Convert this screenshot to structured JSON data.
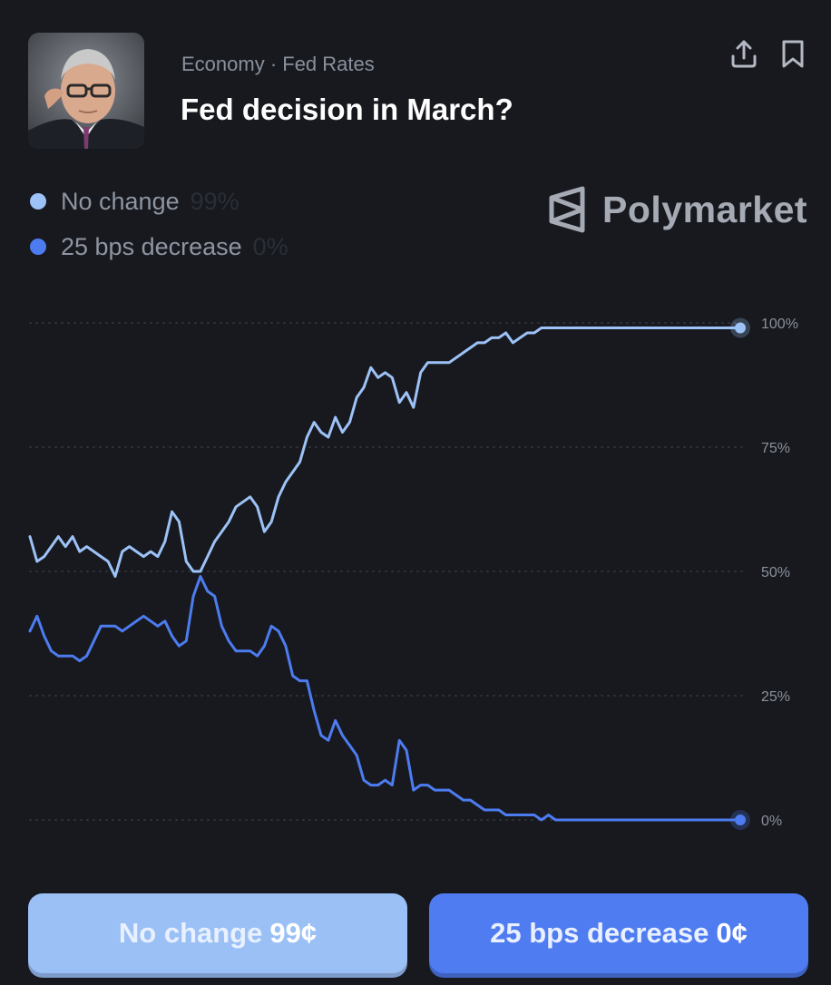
{
  "header": {
    "category": "Economy · Fed Rates",
    "title": "Fed decision in March?"
  },
  "brand": {
    "name": "Polymarket"
  },
  "legend": [
    {
      "label": "No change",
      "value": "99%",
      "color": "#9dc2f7"
    },
    {
      "label": "25 bps decrease",
      "value": "0%",
      "color": "#4d7cf0"
    }
  ],
  "buttons": {
    "no_change": {
      "label": "No change",
      "price": "99¢"
    },
    "decrease": {
      "label": "25 bps decrease",
      "price": "0¢"
    }
  },
  "chart_data": {
    "type": "line",
    "title": "Fed decision in March?",
    "xlabel": "",
    "ylabel": "",
    "ylim": [
      0,
      100
    ],
    "yticks": [
      {
        "value": 100,
        "label": "100%"
      },
      {
        "value": 75,
        "label": "75%"
      },
      {
        "value": 50,
        "label": "50%"
      },
      {
        "value": 25,
        "label": "25%"
      },
      {
        "value": 0,
        "label": "0%"
      }
    ],
    "grid": "horizontal-dotted",
    "x": [
      0,
      1,
      2,
      3,
      4,
      5,
      6,
      7,
      8,
      9,
      10,
      11,
      12,
      13,
      14,
      15,
      16,
      17,
      18,
      19,
      20,
      21,
      22,
      23,
      24,
      25,
      26,
      27,
      28,
      29,
      30,
      31,
      32,
      33,
      34,
      35,
      36,
      37,
      38,
      39,
      40,
      41,
      42,
      43,
      44,
      45,
      46,
      47,
      48,
      49,
      50,
      51,
      52,
      53,
      54,
      55,
      56,
      57,
      58,
      59,
      60,
      61,
      62,
      63,
      64,
      65,
      66,
      67,
      68,
      69,
      70,
      71,
      72,
      73,
      74,
      75,
      76,
      77,
      78,
      79,
      80,
      81,
      82,
      83,
      84,
      85,
      86,
      87,
      88,
      89,
      90,
      91,
      92,
      93,
      94,
      95,
      96,
      97,
      98,
      99,
      100
    ],
    "series": [
      {
        "name": "No change",
        "color": "#9dc2f7",
        "values": [
          57,
          52,
          53,
          55,
          57,
          55,
          57,
          54,
          55,
          54,
          53,
          52,
          49,
          54,
          55,
          54,
          53,
          54,
          53,
          56,
          62,
          60,
          52,
          50,
          50,
          53,
          56,
          58,
          60,
          63,
          64,
          65,
          63,
          58,
          60,
          65,
          68,
          70,
          72,
          77,
          80,
          78,
          77,
          81,
          78,
          80,
          85,
          87,
          91,
          89,
          90,
          89,
          84,
          86,
          83,
          90,
          92,
          92,
          92,
          92,
          93,
          94,
          95,
          96,
          96,
          97,
          97,
          98,
          96,
          97,
          98,
          98,
          99,
          99,
          99,
          99,
          99,
          99,
          99,
          99,
          99,
          99,
          99,
          99,
          99,
          99,
          99,
          99,
          99,
          99,
          99,
          99,
          99,
          99,
          99,
          99,
          99,
          99,
          99,
          99,
          99
        ]
      },
      {
        "name": "25 bps decrease",
        "color": "#4d7cf0",
        "values": [
          38,
          41,
          37,
          34,
          33,
          33,
          33,
          32,
          33,
          36,
          39,
          39,
          39,
          38,
          39,
          40,
          41,
          40,
          39,
          40,
          37,
          35,
          36,
          45,
          49,
          46,
          45,
          39,
          36,
          34,
          34,
          34,
          33,
          35,
          39,
          38,
          35,
          29,
          28,
          28,
          22,
          17,
          16,
          20,
          17,
          15,
          13,
          8,
          7,
          7,
          8,
          7,
          16,
          14,
          6,
          7,
          7,
          6,
          6,
          6,
          5,
          4,
          4,
          3,
          2,
          2,
          2,
          1,
          1,
          1,
          1,
          1,
          0,
          1,
          0,
          0,
          0,
          0,
          0,
          0,
          0,
          0,
          0,
          0,
          0,
          0,
          0,
          0,
          0,
          0,
          0,
          0,
          0,
          0,
          0,
          0,
          0,
          0,
          0,
          0,
          0
        ]
      }
    ]
  }
}
